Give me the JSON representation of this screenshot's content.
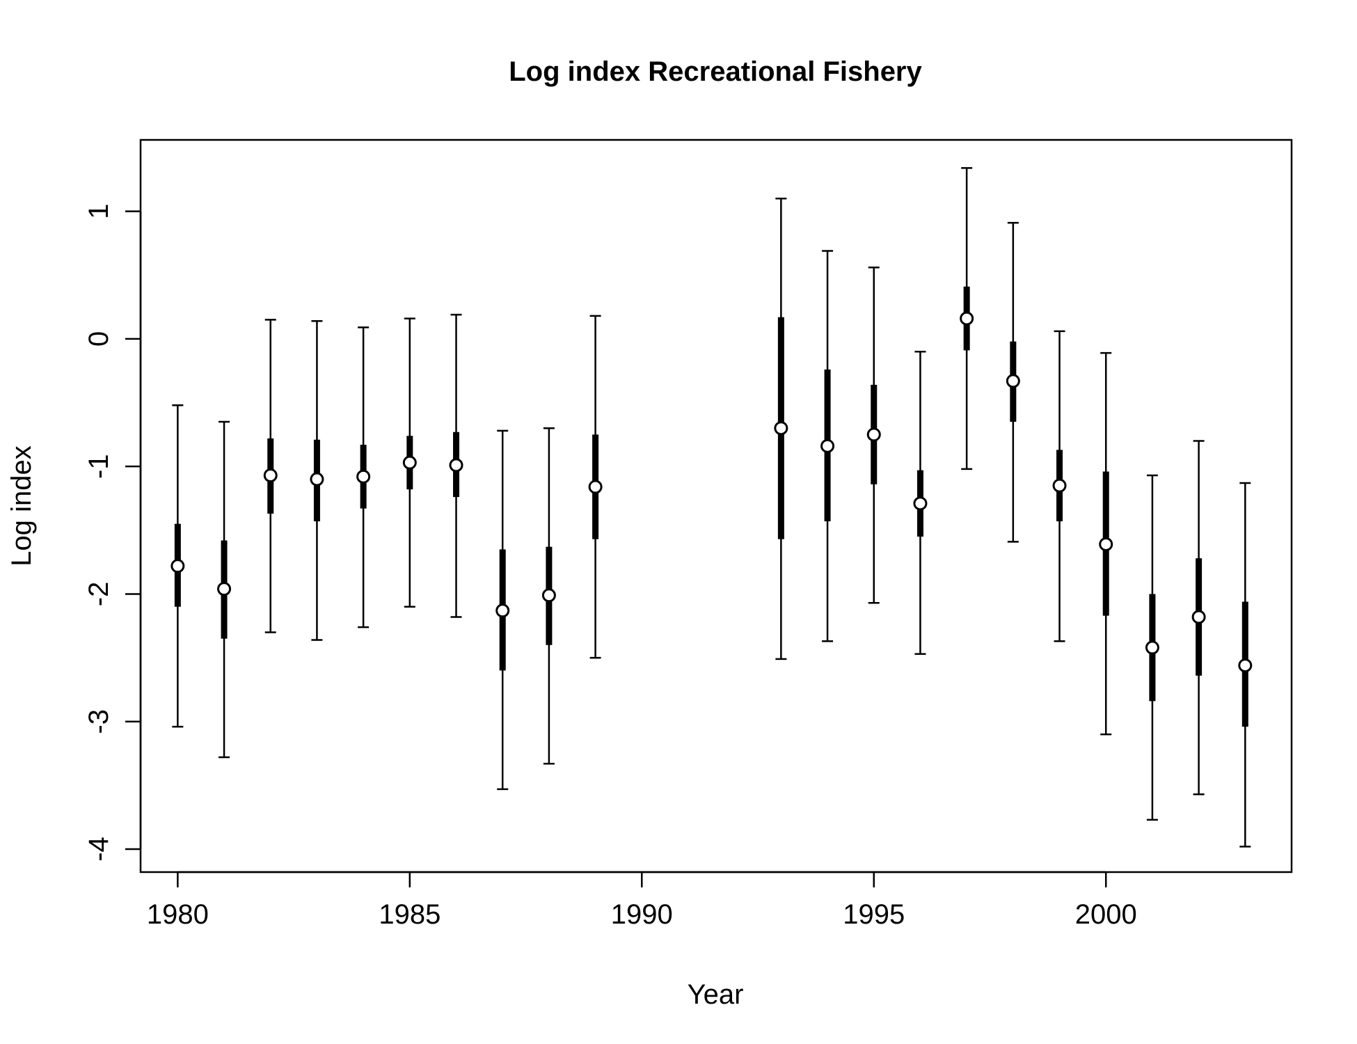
{
  "chart_data": {
    "type": "scatter",
    "title": "Log index Recreational Fishery",
    "xlabel": "Year",
    "ylabel": "Log index",
    "xlim": [
      1979.2,
      2004.0
    ],
    "ylim": [
      -4.18,
      1.56
    ],
    "x_ticks": [
      1980,
      1985,
      1990,
      1995,
      2000
    ],
    "y_ticks": [
      -4,
      -3,
      -2,
      -1,
      0,
      1
    ],
    "x_tick_labels": [
      "1980",
      "1985",
      "1990",
      "1995",
      "2000"
    ],
    "y_tick_labels": [
      "-4",
      "-3",
      "-2",
      "-1",
      "0",
      "1"
    ],
    "grid": false,
    "colors": {
      "ink": "#000000",
      "point_fill": "#ffffff",
      "background": "#ffffff"
    },
    "series": [
      {
        "points": [
          {
            "year": 1980,
            "value": -1.78,
            "inner_lo": -2.1,
            "inner_hi": -1.45,
            "outer_lo": -3.04,
            "outer_hi": -0.52
          },
          {
            "year": 1981,
            "value": -1.96,
            "inner_lo": -2.35,
            "inner_hi": -1.58,
            "outer_lo": -3.28,
            "outer_hi": -0.65
          },
          {
            "year": 1982,
            "value": -1.07,
            "inner_lo": -1.37,
            "inner_hi": -0.78,
            "outer_lo": -2.3,
            "outer_hi": 0.15
          },
          {
            "year": 1983,
            "value": -1.1,
            "inner_lo": -1.43,
            "inner_hi": -0.79,
            "outer_lo": -2.36,
            "outer_hi": 0.14
          },
          {
            "year": 1984,
            "value": -1.08,
            "inner_lo": -1.33,
            "inner_hi": -0.83,
            "outer_lo": -2.26,
            "outer_hi": 0.09
          },
          {
            "year": 1985,
            "value": -0.97,
            "inner_lo": -1.18,
            "inner_hi": -0.76,
            "outer_lo": -2.1,
            "outer_hi": 0.16
          },
          {
            "year": 1986,
            "value": -0.99,
            "inner_lo": -1.24,
            "inner_hi": -0.73,
            "outer_lo": -2.18,
            "outer_hi": 0.19
          },
          {
            "year": 1987,
            "value": -2.13,
            "inner_lo": -2.6,
            "inner_hi": -1.65,
            "outer_lo": -3.53,
            "outer_hi": -0.72
          },
          {
            "year": 1988,
            "value": -2.01,
            "inner_lo": -2.4,
            "inner_hi": -1.63,
            "outer_lo": -3.33,
            "outer_hi": -0.7
          },
          {
            "year": 1989,
            "value": -1.16,
            "inner_lo": -1.57,
            "inner_hi": -0.75,
            "outer_lo": -2.5,
            "outer_hi": 0.18
          },
          {
            "year": 1993,
            "value": -0.7,
            "inner_lo": -1.57,
            "inner_hi": 0.17,
            "outer_lo": -2.51,
            "outer_hi": 1.1
          },
          {
            "year": 1994,
            "value": -0.84,
            "inner_lo": -1.43,
            "inner_hi": -0.24,
            "outer_lo": -2.37,
            "outer_hi": 0.69
          },
          {
            "year": 1995,
            "value": -0.75,
            "inner_lo": -1.14,
            "inner_hi": -0.36,
            "outer_lo": -2.07,
            "outer_hi": 0.56
          },
          {
            "year": 1996,
            "value": -1.29,
            "inner_lo": -1.55,
            "inner_hi": -1.03,
            "outer_lo": -2.47,
            "outer_hi": -0.1
          },
          {
            "year": 1997,
            "value": 0.16,
            "inner_lo": -0.09,
            "inner_hi": 0.41,
            "outer_lo": -1.02,
            "outer_hi": 1.34
          },
          {
            "year": 1998,
            "value": -0.33,
            "inner_lo": -0.65,
            "inner_hi": -0.02,
            "outer_lo": -1.59,
            "outer_hi": 0.91
          },
          {
            "year": 1999,
            "value": -1.15,
            "inner_lo": -1.43,
            "inner_hi": -0.87,
            "outer_lo": -2.37,
            "outer_hi": 0.06
          },
          {
            "year": 2000,
            "value": -1.61,
            "inner_lo": -2.17,
            "inner_hi": -1.04,
            "outer_lo": -3.1,
            "outer_hi": -0.11
          },
          {
            "year": 2001,
            "value": -2.42,
            "inner_lo": -2.84,
            "inner_hi": -2.0,
            "outer_lo": -3.77,
            "outer_hi": -1.07
          },
          {
            "year": 2002,
            "value": -2.18,
            "inner_lo": -2.64,
            "inner_hi": -1.72,
            "outer_lo": -3.57,
            "outer_hi": -0.8
          },
          {
            "year": 2003,
            "value": -2.56,
            "inner_lo": -3.04,
            "inner_hi": -2.06,
            "outer_lo": -3.98,
            "outer_hi": -1.13
          }
        ]
      }
    ]
  }
}
